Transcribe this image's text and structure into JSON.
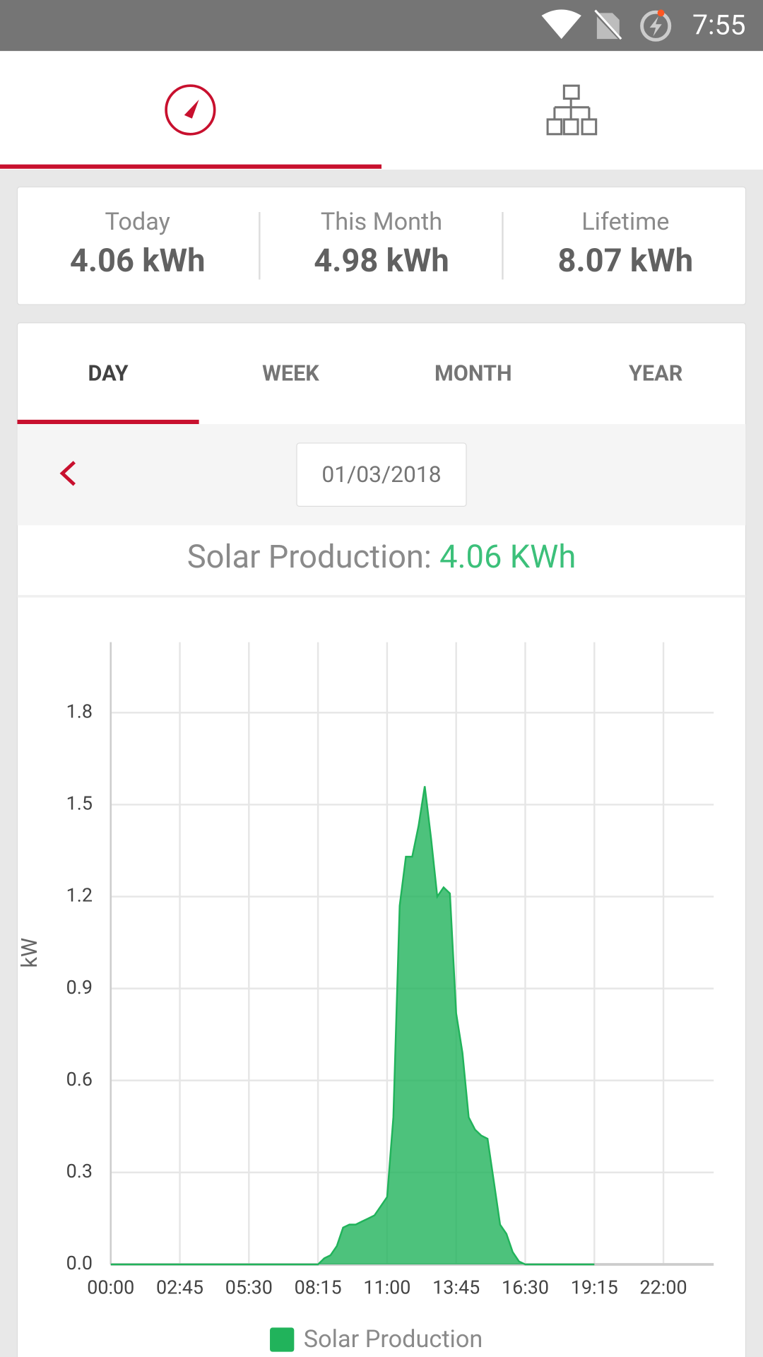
{
  "status_bar": {
    "time": "7:55"
  },
  "summary": [
    {
      "label": "Today",
      "value": "4.06 kWh"
    },
    {
      "label": "This Month",
      "value": "4.98 kWh"
    },
    {
      "label": "Lifetime",
      "value": "8.07 kWh"
    }
  ],
  "tabs": [
    "DAY",
    "WEEK",
    "MONTH",
    "YEAR"
  ],
  "date": "01/03/2018",
  "production": {
    "label": "Solar Production:",
    "value": "4.06 KWh"
  },
  "chart_data": {
    "type": "area",
    "y_label": "kW",
    "x": [
      0,
      480,
      495,
      510,
      525,
      540,
      555,
      570,
      585,
      600,
      615,
      630,
      645,
      660,
      675,
      690,
      705,
      720,
      735,
      750,
      765,
      780,
      795,
      810,
      825,
      840,
      855,
      870,
      885,
      900,
      915,
      930,
      945,
      960,
      975,
      990,
      1155
    ],
    "series": [
      {
        "name": "Solar Production",
        "color": "#21b35b",
        "values": [
          0,
          0,
          0,
          0.02,
          0.03,
          0.06,
          0.12,
          0.13,
          0.13,
          0.14,
          0.15,
          0.16,
          0.19,
          0.22,
          0.48,
          1.17,
          1.33,
          1.33,
          1.43,
          1.56,
          1.39,
          1.2,
          1.23,
          1.21,
          0.82,
          0.69,
          0.48,
          0.44,
          0.42,
          0.41,
          0.27,
          0.13,
          0.1,
          0.04,
          0.01,
          0,
          0
        ]
      }
    ],
    "xlim": [
      0,
      1440
    ],
    "ylim": [
      0,
      2.03
    ],
    "xticks": [
      {
        "value": 0,
        "label": "00:00"
      },
      {
        "value": 165,
        "label": "02:45"
      },
      {
        "value": 330,
        "label": "05:30"
      },
      {
        "value": 495,
        "label": "08:15"
      },
      {
        "value": 660,
        "label": "11:00"
      },
      {
        "value": 825,
        "label": "13:45"
      },
      {
        "value": 990,
        "label": "16:30"
      },
      {
        "value": 1155,
        "label": "19:15"
      },
      {
        "value": 1320,
        "label": "22:00"
      }
    ],
    "yticks": [
      {
        "value": 0,
        "label": "0.0"
      },
      0.3,
      0.6,
      0.9,
      1.2,
      1.5,
      1.8
    ],
    "grid": true
  }
}
